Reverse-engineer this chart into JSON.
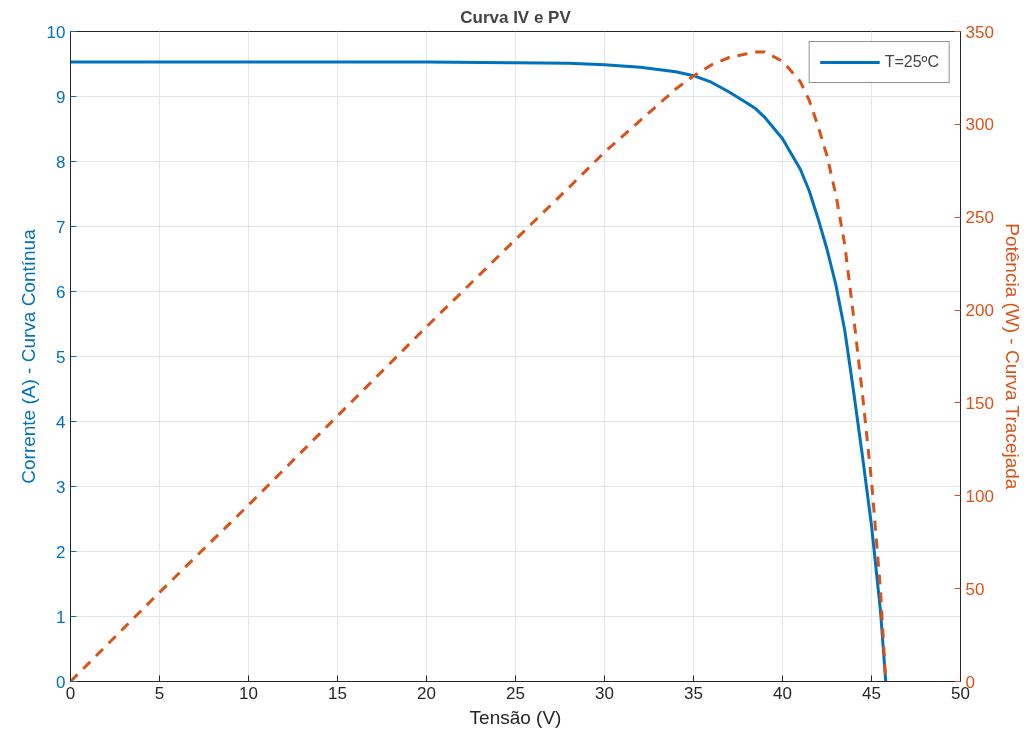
{
  "chart_data": {
    "type": "line",
    "title": "Curva IV e PV",
    "xlabel": "Tensão (V)",
    "ylabel": "Corrente (A) - Curva Contínua",
    "y2label": "Potência (W) - Curva Tracejada",
    "x": [
      0,
      5,
      10,
      15,
      20,
      25,
      28,
      30,
      32,
      34,
      35,
      36,
      37,
      38,
      38.5,
      39,
      40,
      41,
      41.5,
      42,
      42.5,
      43,
      43.5,
      44,
      44.5,
      45,
      45.5,
      45.8
    ],
    "series": [
      {
        "name": "T=25ºC",
        "color": "#0072bd",
        "axis": "y",
        "line_style": "solid",
        "values": [
          9.53,
          9.53,
          9.53,
          9.53,
          9.53,
          9.52,
          9.51,
          9.49,
          9.45,
          9.38,
          9.32,
          9.22,
          9.07,
          8.9,
          8.81,
          8.68,
          8.35,
          7.88,
          7.55,
          7.12,
          6.65,
          6.1,
          5.4,
          4.45,
          3.45,
          2.4,
          1.1,
          0
        ]
      },
      {
        "color": "#d95319",
        "axis": "y2",
        "line_style": "dashed",
        "values": [
          0,
          48,
          95,
          143,
          191,
          238,
          266,
          285,
          302,
          319,
          326,
          332,
          336,
          338,
          339,
          339,
          334,
          323,
          313,
          299,
          283,
          262,
          235,
          196,
          154,
          108,
          50,
          0
        ]
      }
    ],
    "xlim": [
      0,
      50
    ],
    "xticks": [
      0,
      5,
      10,
      15,
      20,
      25,
      30,
      35,
      40,
      45,
      50
    ],
    "ylim": [
      0,
      10
    ],
    "yticks": [
      0,
      1,
      2,
      3,
      4,
      5,
      6,
      7,
      8,
      9,
      10
    ],
    "y2lim": [
      0,
      350
    ],
    "y2ticks": [
      0,
      50,
      100,
      150,
      200,
      250,
      300,
      350
    ],
    "grid": true,
    "legend": "top right"
  }
}
